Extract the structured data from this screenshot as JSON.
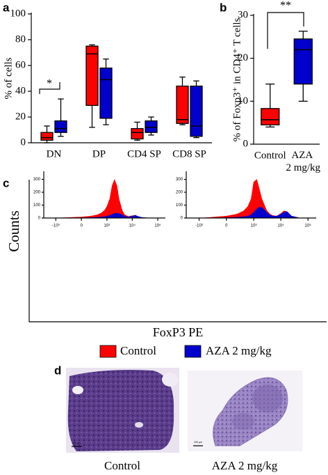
{
  "chart_data": [
    {
      "type": "box",
      "label": "a",
      "ylabel": "% of cells",
      "categories": [
        "DN",
        "DP",
        "CD4 SP",
        "CD8 SP"
      ],
      "series": [
        {
          "color": "#ff0000",
          "values": [
            [
              0,
              2,
              4,
              8,
              13
            ],
            [
              12,
              29,
              69,
              75,
              76
            ],
            [
              2,
              3,
              8,
              11,
              16
            ],
            [
              14,
              15,
              18,
              44,
              51
            ]
          ]
        },
        {
          "color": "#0000cc",
          "values": [
            [
              5,
              8,
              11,
              17,
              34
            ],
            [
              14,
              19,
              49,
              58,
              65
            ],
            [
              6,
              8,
              12,
              17,
              20
            ],
            [
              4,
              5,
              13,
              44,
              48
            ]
          ]
        }
      ],
      "ylim": [
        0,
        100
      ],
      "yticks": [
        0,
        20,
        40,
        60,
        80,
        100
      ],
      "annotation": "*"
    },
    {
      "type": "box",
      "label": "b",
      "ylabel": "% of Foxp3⁺ in CD4⁺ T cells",
      "categories": [
        "Control",
        "AZA 2 mg/kg"
      ],
      "colors": [
        "#ff0000",
        "#0000cc"
      ],
      "series": [
        {
          "values": [
            [
              4,
              4.5,
              5.7,
              8.3,
              14
            ],
            [
              10,
              14,
              22,
              24.5,
              26.3
            ]
          ]
        }
      ],
      "ylim": [
        0,
        30
      ],
      "yticks": [
        0,
        10,
        20,
        30
      ],
      "annotation": "**"
    },
    {
      "type": "area",
      "label": "c",
      "ylabel": "Counts",
      "xlabel": "FoxP3 PE",
      "xscale": "biexponential",
      "x": [
        -1500,
        -1000,
        -500,
        0,
        200,
        400,
        600,
        800,
        1000,
        1300,
        1600,
        2000,
        2500,
        3000,
        4000,
        5000,
        7000,
        10000,
        13000,
        17000,
        25000,
        50000,
        100000
      ],
      "xlim": [
        -3000,
        200000
      ],
      "xticks": [
        {
          "value": -1000,
          "label": "-10³"
        },
        0,
        {
          "value": 1000,
          "label": "10³"
        },
        {
          "value": 10000,
          "label": "10⁴"
        },
        {
          "value": 100000,
          "label": "10⁵"
        }
      ],
      "ylim": [
        0,
        330
      ],
      "yticks": [
        0,
        100,
        200,
        300
      ],
      "series": [
        {
          "name": "Control",
          "color": "#ff0000",
          "values": [
            [
              0,
              0,
              2,
              8,
              15,
              25,
              40,
              60,
              90,
              150,
              250,
              300,
              250,
              150,
              60,
              25,
              12,
              18,
              20,
              10,
              3,
              0,
              0
            ],
            [
              0,
              0,
              3,
              15,
              30,
              55,
              90,
              150,
              280,
              300,
              230,
              150,
              100,
              60,
              30,
              20,
              15,
              35,
              55,
              50,
              15,
              0,
              0
            ]
          ]
        },
        {
          "name": "AZA 2 mg/kg",
          "color": "#0000cc",
          "values": [
            [
              0,
              0,
              0,
              2,
              4,
              6,
              8,
              10,
              14,
              20,
              28,
              35,
              38,
              35,
              25,
              15,
              8,
              14,
              22,
              12,
              4,
              0,
              0
            ],
            [
              0,
              0,
              0,
              3,
              6,
              10,
              15,
              25,
              45,
              70,
              85,
              80,
              65,
              45,
              25,
              15,
              15,
              30,
              45,
              50,
              15,
              0,
              0
            ]
          ]
        }
      ]
    }
  ],
  "panel_d": {
    "label": "d",
    "images": [
      {
        "caption": "Control",
        "scale_bar": "200 µm"
      },
      {
        "caption": "AZA 2 mg/kg",
        "scale_bar": "200 µm"
      }
    ]
  }
}
